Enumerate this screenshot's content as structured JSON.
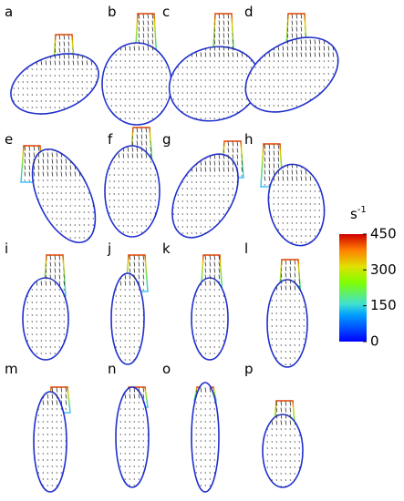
{
  "panels": [
    {
      "label": "a"
    },
    {
      "label": "b"
    },
    {
      "label": "c"
    },
    {
      "label": "d"
    },
    {
      "label": "e"
    },
    {
      "label": "f"
    },
    {
      "label": "g"
    },
    {
      "label": "h"
    },
    {
      "label": "i"
    },
    {
      "label": "j"
    },
    {
      "label": "k"
    },
    {
      "label": "l"
    },
    {
      "label": "m"
    },
    {
      "label": "n"
    },
    {
      "label": "o"
    },
    {
      "label": "p"
    }
  ],
  "colorbar": {
    "unit": "s",
    "unit_exponent": "-1",
    "range": [
      0,
      450
    ],
    "ticks": [
      450,
      300,
      150,
      0
    ]
  }
}
